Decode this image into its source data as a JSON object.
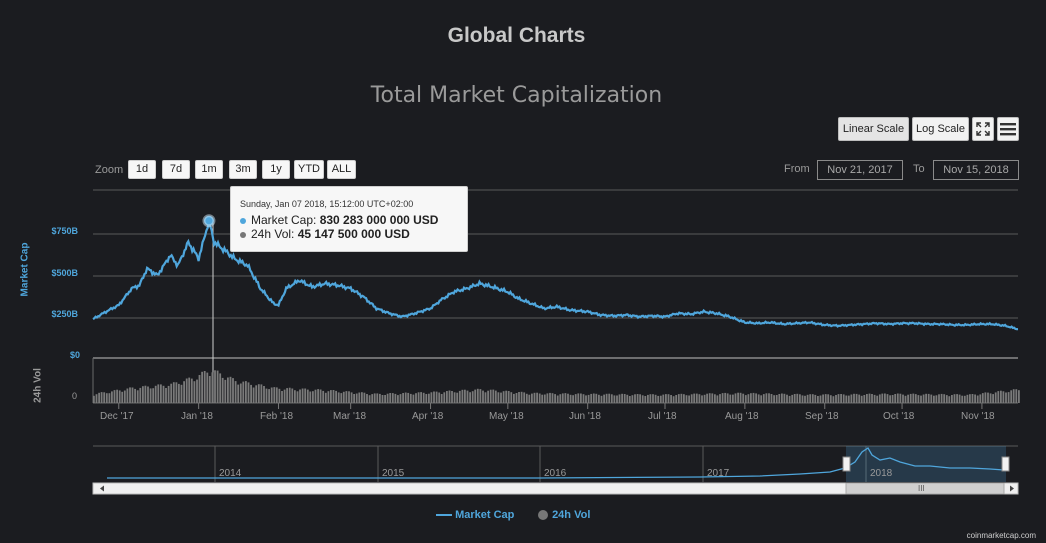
{
  "page_title": "Global Charts",
  "controls": {
    "linear_scale": "Linear Scale",
    "log_scale": "Log Scale",
    "fullscreen_icon": "expand-icon",
    "menu_icon": "hamburger-menu-icon",
    "zoom_label": "Zoom",
    "zoom_buttons": [
      "1d",
      "7d",
      "1m",
      "3m",
      "1y",
      "YTD",
      "ALL"
    ],
    "from_label": "From",
    "from_value": "Nov 21, 2017",
    "to_label": "To",
    "to_value": "Nov 15, 2018"
  },
  "tooltip": {
    "date": "Sunday, Jan 07 2018, 15:12:00 UTC+02:00",
    "market_cap_label": "Market Cap:",
    "market_cap_value": "830 283 000 000 USD",
    "vol_label": "24h Vol:",
    "vol_value": "45 147 500 000 USD"
  },
  "navigator": {
    "years": [
      "2014",
      "2015",
      "2016",
      "2017",
      "2018"
    ],
    "scroll_grip": "III"
  },
  "legend": {
    "market_cap": "Market Cap",
    "vol": "24h Vol"
  },
  "credit": "coinmarketcap.com",
  "colors": {
    "background": "#1b1c20",
    "market_cap": "#4fa6dc",
    "volume": "#7a7a7a"
  },
  "chart_data": {
    "type": "line",
    "title": "Total Market Capitalization",
    "ylabel": "Market Cap",
    "ylabel2": "24h Vol",
    "y_ticks": [
      "$750B",
      "$500B",
      "$250B",
      "$0"
    ],
    "y2_ticks": [
      "0"
    ],
    "ylim": [
      0,
      1000
    ],
    "x_ticks": [
      "Dec '17",
      "Jan '18",
      "Feb '18",
      "Mar '18",
      "Apr '18",
      "May '18",
      "Jun '18",
      "Jul '18",
      "Aug '18",
      "Sep '18",
      "Oct '18",
      "Nov '18"
    ],
    "x_tick_days": [
      10,
      41,
      72,
      100,
      131,
      161,
      192,
      222,
      253,
      284,
      314,
      345
    ],
    "x_range_days": [
      0,
      359
    ],
    "series": [
      {
        "name": "Market Cap",
        "unit": "billion USD",
        "x_days": [
          0,
          5,
          10,
          15,
          18,
          21,
          25,
          30,
          33,
          37,
          41,
          45,
          47,
          52,
          55,
          60,
          65,
          70,
          72,
          75,
          80,
          85,
          90,
          95,
          100,
          105,
          110,
          115,
          120,
          125,
          131,
          135,
          140,
          145,
          150,
          155,
          161,
          165,
          170,
          175,
          180,
          185,
          192,
          197,
          202,
          207,
          212,
          217,
          222,
          227,
          232,
          237,
          242,
          247,
          253,
          258,
          263,
          268,
          273,
          278,
          284,
          289,
          294,
          299,
          304,
          309,
          314,
          319,
          324,
          329,
          334,
          339,
          344,
          349,
          354,
          359
        ],
        "values": [
          235,
          280,
          320,
          420,
          440,
          540,
          500,
          620,
          560,
          700,
          600,
          830,
          700,
          640,
          600,
          560,
          420,
          330,
          320,
          420,
          470,
          430,
          450,
          440,
          420,
          370,
          300,
          270,
          250,
          270,
          300,
          350,
          400,
          420,
          450,
          430,
          400,
          360,
          330,
          300,
          310,
          290,
          280,
          260,
          255,
          260,
          250,
          255,
          250,
          270,
          265,
          280,
          270,
          250,
          215,
          210,
          215,
          205,
          210,
          215,
          200,
          195,
          200,
          205,
          210,
          205,
          210,
          210,
          205,
          205,
          200,
          200,
          205,
          205,
          195,
          175
        ]
      },
      {
        "name": "24h Vol",
        "unit": "billion USD",
        "x_days": [
          0,
          15,
          30,
          40,
          45,
          55,
          70,
          90,
          110,
          130,
          150,
          170,
          190,
          220,
          250,
          280,
          310,
          340,
          359
        ],
        "values": [
          12,
          20,
          25,
          35,
          45,
          30,
          20,
          17,
          12,
          14,
          18,
          13,
          12,
          11,
          13,
          11,
          12,
          11,
          18
        ]
      }
    ],
    "highlight": {
      "series": "Market Cap",
      "day": 45,
      "value": 830
    }
  }
}
